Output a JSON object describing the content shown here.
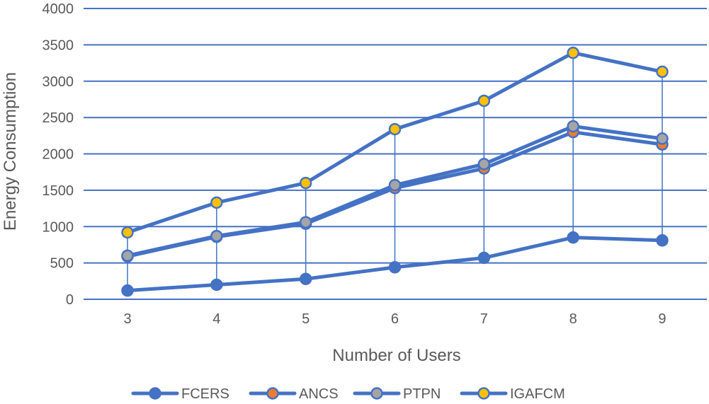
{
  "chart_data": {
    "type": "line",
    "title": "",
    "xlabel": "Number of Users",
    "ylabel": "Energy Consumption",
    "x": [
      3,
      4,
      5,
      6,
      7,
      8,
      9
    ],
    "x_tick_labels": [
      "3",
      "4",
      "5",
      "6",
      "7",
      "8",
      "9"
    ],
    "ylim": [
      0,
      4000
    ],
    "y_ticks": [
      0,
      500,
      1000,
      1500,
      2000,
      2500,
      3000,
      3500,
      4000
    ],
    "y_tick_labels": [
      "0",
      "500",
      "1000",
      "1500",
      "2000",
      "2500",
      "3000",
      "3500",
      "4000"
    ],
    "grid": true,
    "legend_position": "bottom",
    "line_color": "#4472C4",
    "series": [
      {
        "name": "FCERS",
        "marker_color": "#4472C4",
        "values": [
          120,
          200,
          280,
          440,
          570,
          850,
          810
        ]
      },
      {
        "name": "ANCS",
        "marker_color": "#ED7D31",
        "values": [
          590,
          860,
          1040,
          1530,
          1800,
          2300,
          2130
        ]
      },
      {
        "name": "PTPN",
        "marker_color": "#A5A5A5",
        "values": [
          600,
          870,
          1060,
          1570,
          1860,
          2380,
          2210
        ]
      },
      {
        "name": "IGAFCM",
        "marker_color": "#FFC000",
        "values": [
          920,
          1330,
          1600,
          2340,
          2730,
          3390,
          3130
        ]
      }
    ]
  }
}
